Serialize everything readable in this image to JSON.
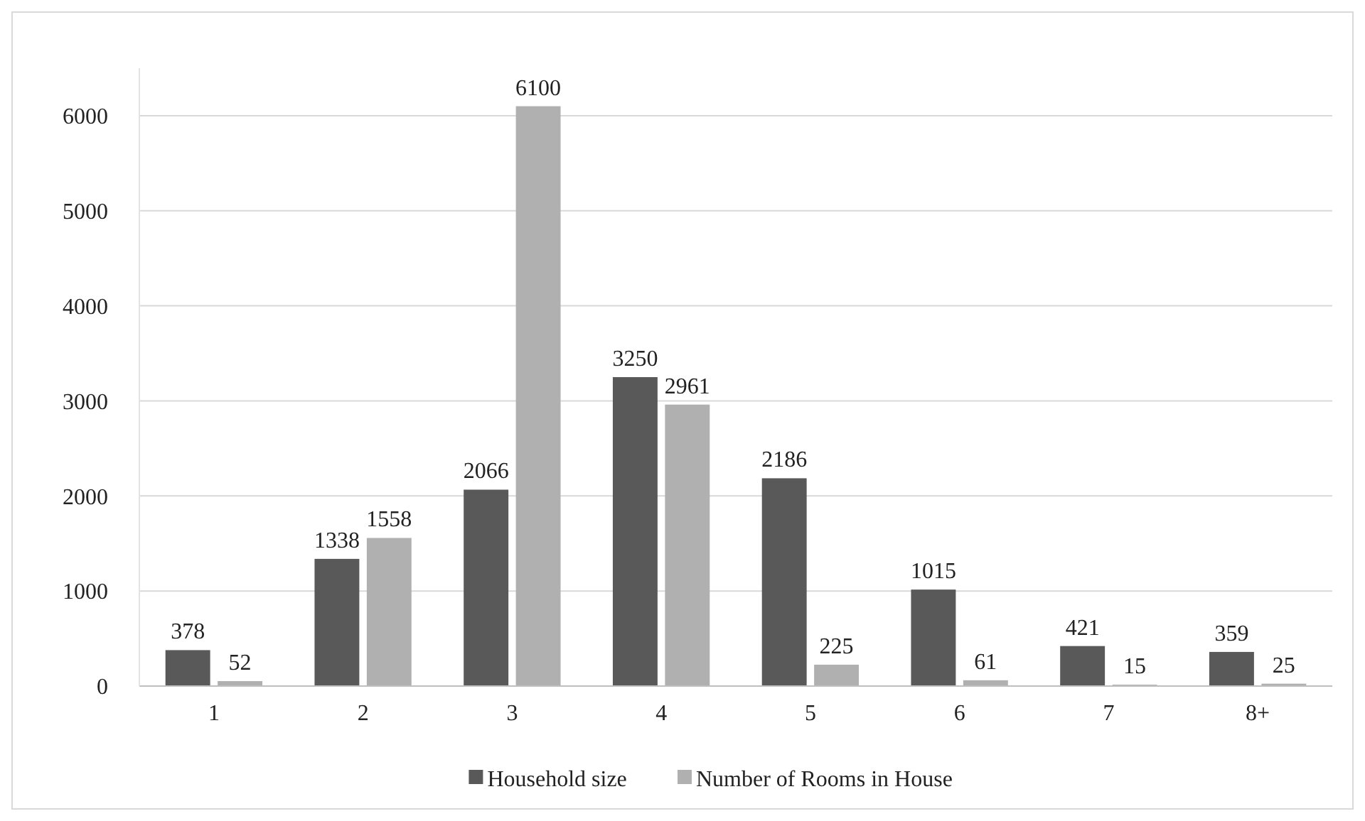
{
  "chart_data": {
    "type": "bar",
    "categories": [
      "1",
      "2",
      "3",
      "4",
      "5",
      "6",
      "7",
      "8+"
    ],
    "series": [
      {
        "name": "Household size",
        "color": "#595959",
        "values": [
          378,
          1338,
          2066,
          3250,
          2186,
          1015,
          421,
          359
        ]
      },
      {
        "name": "Number of Rooms in House",
        "color": "#b0b0b0",
        "values": [
          52,
          1558,
          6100,
          2961,
          225,
          61,
          15,
          25
        ]
      }
    ],
    "ylim": [
      0,
      6500
    ],
    "yticks": [
      0,
      1000,
      2000,
      3000,
      4000,
      5000,
      6000
    ],
    "grid": "y",
    "legend": "bottom",
    "data_labels": true
  }
}
